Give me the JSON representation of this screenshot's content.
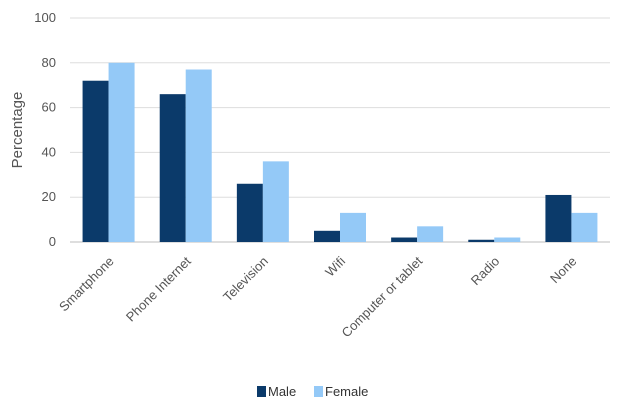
{
  "chart_data": {
    "type": "bar",
    "title": "",
    "xlabel": "",
    "ylabel": "Percentage",
    "ylim": [
      0,
      100
    ],
    "yticks": [
      0,
      20,
      40,
      60,
      80,
      100
    ],
    "grid": true,
    "legend_position": "bottom",
    "categories": [
      "Smartphone",
      "Phone Internet",
      "Television",
      "Wifi",
      "Computer or tablet",
      "Radio",
      "None"
    ],
    "series": [
      {
        "name": "Male",
        "color": "#0b3a6a",
        "values": [
          72,
          66,
          26,
          5,
          2,
          1,
          21
        ]
      },
      {
        "name": "Female",
        "color": "#94c9f7",
        "values": [
          80,
          77,
          36,
          13,
          7,
          2,
          13
        ]
      }
    ]
  }
}
